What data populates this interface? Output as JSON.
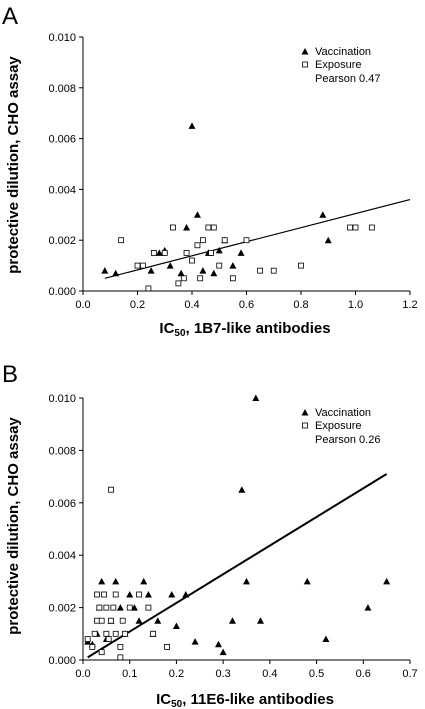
{
  "chart_data": [
    {
      "type": "scatter",
      "panel_label": "A",
      "xlabel_sub": "50",
      "xlabel_rest": ", 1B7-like antibodies",
      "xlabel_prefix": "IC",
      "ylabel": "protective dilution, CHO assay",
      "xlim": [
        0,
        1.2
      ],
      "ylim": [
        0,
        0.01
      ],
      "x_ticks": [
        "0.0",
        "0.2",
        "0.4",
        "0.6",
        "0.8",
        "1.0",
        "1.2"
      ],
      "y_ticks": [
        "0.000",
        "0.002",
        "0.004",
        "0.006",
        "0.008",
        "0.010"
      ],
      "legend": {
        "vaccination": "Vaccination",
        "exposure": "Exposure",
        "pearson": "Pearson 0.47",
        "placement": "top-right"
      },
      "trendline": {
        "x": [
          0.08,
          1.2
        ],
        "y": [
          0.0005,
          0.0036
        ]
      },
      "series": [
        {
          "name": "Vaccination",
          "marker": "triangle",
          "points": [
            [
              0.08,
              0.0008
            ],
            [
              0.12,
              0.0007
            ],
            [
              0.25,
              0.0008
            ],
            [
              0.28,
              0.0015
            ],
            [
              0.3,
              0.0016
            ],
            [
              0.32,
              0.001
            ],
            [
              0.36,
              0.0007
            ],
            [
              0.38,
              0.0025
            ],
            [
              0.4,
              0.0065
            ],
            [
              0.42,
              0.003
            ],
            [
              0.44,
              0.0008
            ],
            [
              0.46,
              0.0015
            ],
            [
              0.48,
              0.0007
            ],
            [
              0.5,
              0.0016
            ],
            [
              0.52,
              0.002
            ],
            [
              0.55,
              0.001
            ],
            [
              0.58,
              0.0015
            ],
            [
              0.88,
              0.003
            ],
            [
              0.9,
              0.002
            ]
          ]
        },
        {
          "name": "Exposure",
          "marker": "square",
          "points": [
            [
              0.14,
              0.002
            ],
            [
              0.2,
              0.001
            ],
            [
              0.22,
              0.001
            ],
            [
              0.24,
              0.0001
            ],
            [
              0.26,
              0.0015
            ],
            [
              0.3,
              0.0015
            ],
            [
              0.33,
              0.0025
            ],
            [
              0.35,
              0.0003
            ],
            [
              0.37,
              0.0005
            ],
            [
              0.38,
              0.0015
            ],
            [
              0.4,
              0.0012
            ],
            [
              0.42,
              0.0018
            ],
            [
              0.43,
              0.0005
            ],
            [
              0.44,
              0.002
            ],
            [
              0.46,
              0.0025
            ],
            [
              0.47,
              0.0015
            ],
            [
              0.48,
              0.0025
            ],
            [
              0.5,
              0.001
            ],
            [
              0.52,
              0.002
            ],
            [
              0.55,
              0.0005
            ],
            [
              0.6,
              0.002
            ],
            [
              0.65,
              0.0008
            ],
            [
              0.7,
              0.0008
            ],
            [
              0.8,
              0.001
            ],
            [
              0.98,
              0.0025
            ],
            [
              1.0,
              0.0025
            ],
            [
              1.06,
              0.0025
            ]
          ]
        }
      ]
    },
    {
      "type": "scatter",
      "panel_label": "B",
      "xlabel_sub": "50",
      "xlabel_rest": ", 11E6-like antibodies",
      "xlabel_prefix": "IC",
      "ylabel": "protective dilution, CHO assay",
      "xlim": [
        0,
        0.7
      ],
      "ylim": [
        0,
        0.01
      ],
      "x_ticks": [
        "0.0",
        "0.1",
        "0.2",
        "0.3",
        "0.4",
        "0.5",
        "0.6",
        "0.7"
      ],
      "y_ticks": [
        "0.000",
        "0.002",
        "0.004",
        "0.006",
        "0.008",
        "0.010"
      ],
      "legend": {
        "vaccination": "Vaccination",
        "exposure": "Exposure",
        "pearson": "Pearson 0.26",
        "placement": "top-right"
      },
      "trendline": {
        "x": [
          0.01,
          0.65
        ],
        "y": [
          0.0001,
          0.0071
        ]
      },
      "series": [
        {
          "name": "Vaccination",
          "marker": "triangle",
          "points": [
            [
              0.01,
              0.0007
            ],
            [
              0.02,
              0.0006
            ],
            [
              0.03,
              0.001
            ],
            [
              0.035,
              0.002
            ],
            [
              0.04,
              0.003
            ],
            [
              0.05,
              0.0008
            ],
            [
              0.06,
              0.0015
            ],
            [
              0.07,
              0.003
            ],
            [
              0.08,
              0.002
            ],
            [
              0.09,
              0.001
            ],
            [
              0.1,
              0.0025
            ],
            [
              0.11,
              0.002
            ],
            [
              0.12,
              0.0015
            ],
            [
              0.13,
              0.003
            ],
            [
              0.14,
              0.0025
            ],
            [
              0.15,
              0.001
            ],
            [
              0.16,
              0.0015
            ],
            [
              0.19,
              0.0025
            ],
            [
              0.2,
              0.0013
            ],
            [
              0.22,
              0.0025
            ],
            [
              0.24,
              0.0007
            ],
            [
              0.29,
              0.0006
            ],
            [
              0.3,
              0.0003
            ],
            [
              0.32,
              0.0015
            ],
            [
              0.34,
              0.0065
            ],
            [
              0.35,
              0.003
            ],
            [
              0.37,
              0.01
            ],
            [
              0.38,
              0.0015
            ],
            [
              0.48,
              0.003
            ],
            [
              0.52,
              0.0008
            ],
            [
              0.61,
              0.002
            ],
            [
              0.65,
              0.003
            ]
          ]
        },
        {
          "name": "Exposure",
          "marker": "square",
          "points": [
            [
              0.01,
              0.0008
            ],
            [
              0.02,
              0.0005
            ],
            [
              0.025,
              0.001
            ],
            [
              0.03,
              0.0015
            ],
            [
              0.03,
              0.0025
            ],
            [
              0.035,
              0.002
            ],
            [
              0.04,
              0.0003
            ],
            [
              0.04,
              0.0015
            ],
            [
              0.045,
              0.0025
            ],
            [
              0.05,
              0.001
            ],
            [
              0.05,
              0.002
            ],
            [
              0.055,
              0.0008
            ],
            [
              0.06,
              0.0065
            ],
            [
              0.06,
              0.0015
            ],
            [
              0.065,
              0.002
            ],
            [
              0.07,
              0.0025
            ],
            [
              0.07,
              0.001
            ],
            [
              0.08,
              0.0005
            ],
            [
              0.085,
              0.0015
            ],
            [
              0.09,
              0.001
            ],
            [
              0.1,
              0.002
            ],
            [
              0.12,
              0.0025
            ],
            [
              0.14,
              0.002
            ],
            [
              0.15,
              0.001
            ],
            [
              0.18,
              0.0005
            ],
            [
              0.08,
              0.0001
            ]
          ]
        }
      ]
    }
  ]
}
